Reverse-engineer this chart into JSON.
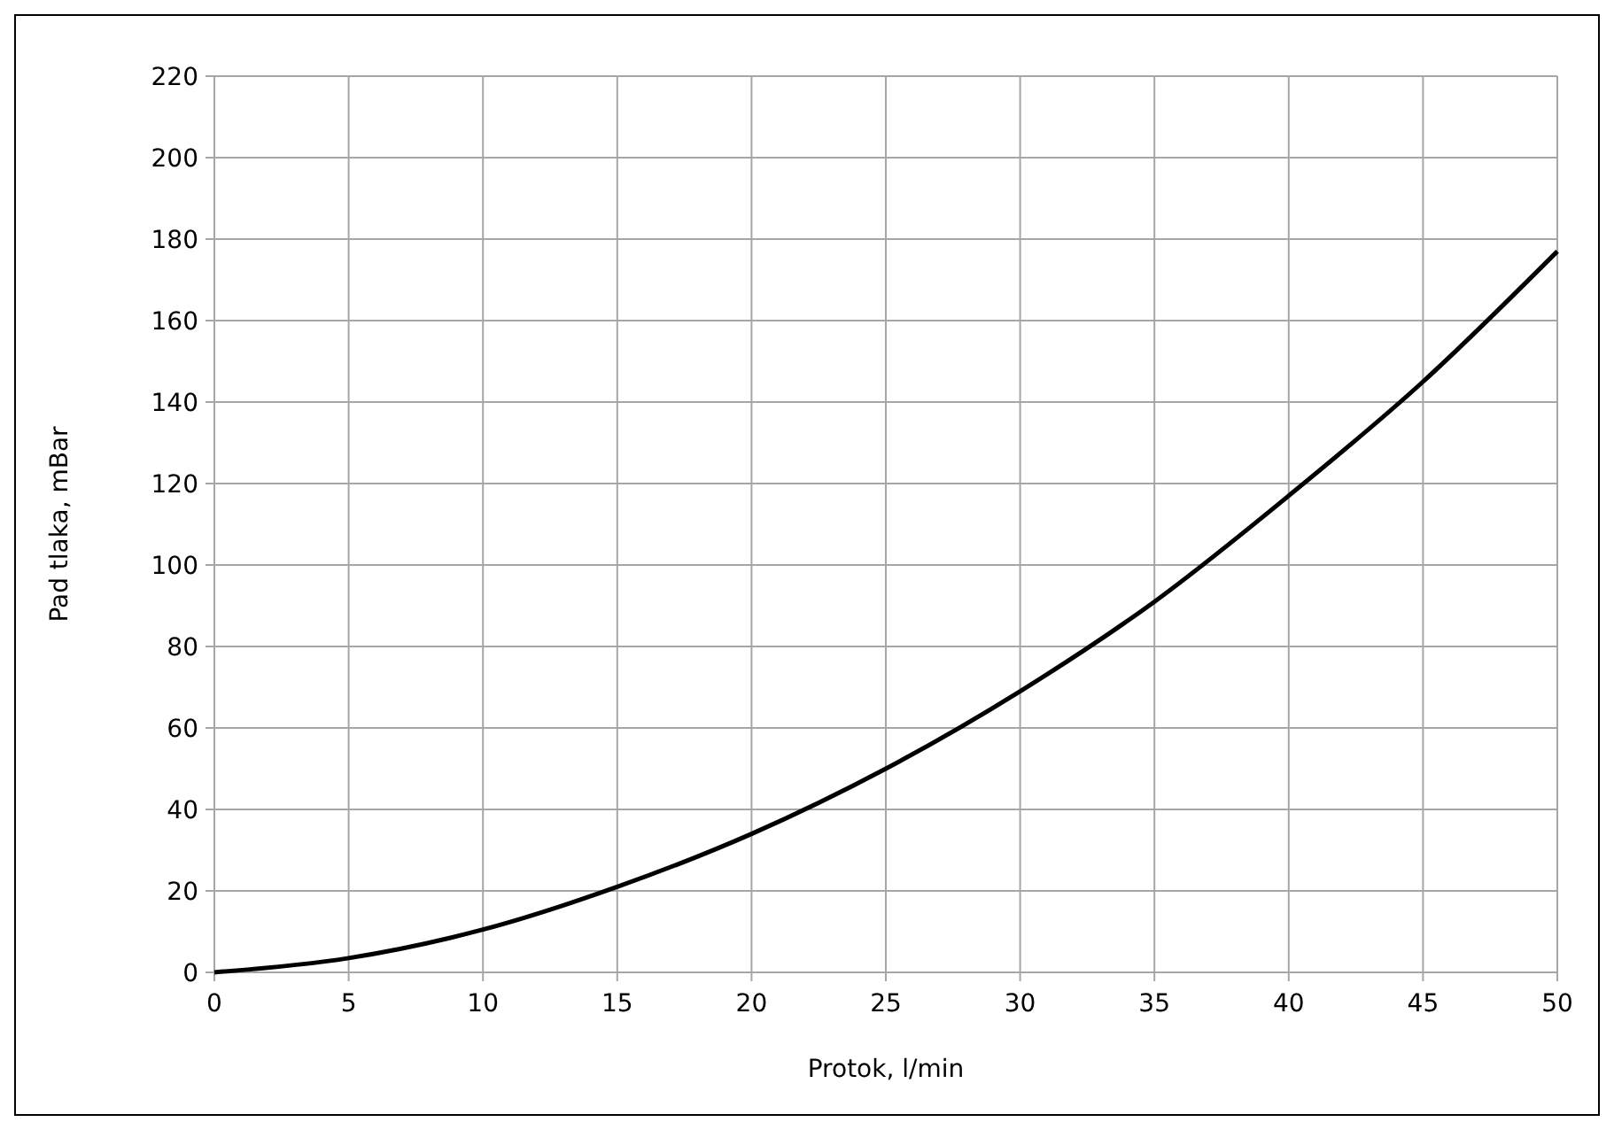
{
  "chart_data": {
    "type": "line",
    "xlabel": "Protok, l/min",
    "ylabel": "Pad tlaka, mBar",
    "x": [
      0,
      5,
      10,
      15,
      20,
      25,
      30,
      35,
      40,
      45,
      50
    ],
    "series": [
      {
        "color": "#000000",
        "values": [
          0,
          3.5,
          10.5,
          21,
          34,
          50,
          69,
          91,
          117,
          145,
          177
        ]
      }
    ],
    "xlim": [
      0,
      50
    ],
    "xticks": [
      0,
      5,
      10,
      15,
      20,
      25,
      30,
      35,
      40,
      45,
      50
    ],
    "ylim": [
      0,
      220
    ],
    "yticks": [
      0,
      20,
      40,
      60,
      80,
      100,
      120,
      140,
      160,
      180,
      200,
      220
    ],
    "grid": true,
    "marker": "none",
    "line_style": "solid"
  }
}
